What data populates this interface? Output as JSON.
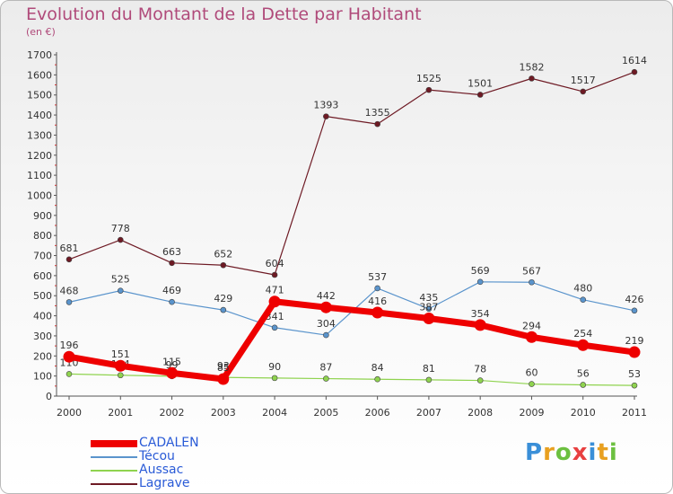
{
  "title": "Evolution du Montant de la Dette par Habitant",
  "subtitle": "(en €)",
  "logo": "Proxiti",
  "logo_colors": [
    "#3a8fd8",
    "#e8a020",
    "#6cc040",
    "#e84040",
    "#3a8fd8",
    "#e8a020",
    "#6cc040"
  ],
  "colors": {
    "title": "#b04a7a",
    "axis": "#555555",
    "grid": "#dddddd",
    "legend_text": "#2a5bd7"
  },
  "chart_data": {
    "type": "line",
    "title": "Evolution du Montant de la Dette par Habitant",
    "ylabel": "(en €)",
    "x": [
      "2000",
      "2001",
      "2002",
      "2003",
      "2004",
      "2005",
      "2006",
      "2007",
      "2008",
      "2009",
      "2010",
      "2011"
    ],
    "ylim": [
      0,
      1700
    ],
    "yticks": [
      0,
      100,
      200,
      300,
      400,
      500,
      600,
      700,
      800,
      900,
      1000,
      1100,
      1200,
      1300,
      1400,
      1500,
      1600,
      1700
    ],
    "grid": false,
    "legend_position": "bottom-left",
    "series": [
      {
        "name": "Lagrave",
        "color": "#6e1a24",
        "values": [
          681,
          778,
          663,
          652,
          604,
          1393,
          1355,
          1525,
          1501,
          1582,
          1517,
          1614
        ]
      },
      {
        "name": "Técou",
        "color": "#5a94cc",
        "values": [
          468,
          525,
          469,
          429,
          341,
          304,
          537,
          435,
          569,
          567,
          480,
          426
        ]
      },
      {
        "name": "Aussac",
        "color": "#8fd34f",
        "values": [
          110,
          104,
          99,
          93,
          90,
          87,
          84,
          81,
          78,
          60,
          56,
          53
        ]
      },
      {
        "name": "CADALEN",
        "color": "#ee0000",
        "values": [
          196,
          151,
          115,
          85,
          471,
          442,
          416,
          387,
          354,
          294,
          254,
          219
        ]
      }
    ],
    "legend_order": [
      "CADALEN",
      "Técou",
      "Aussac",
      "Lagrave"
    ]
  }
}
